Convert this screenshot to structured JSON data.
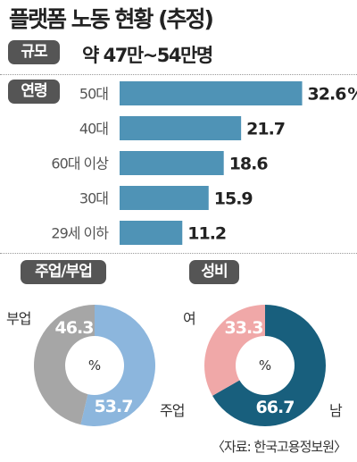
{
  "title": "플랫폼 노동 현황 (추정)",
  "scale": {
    "tag": "규모",
    "value": "약 47만~54만명"
  },
  "age": {
    "tag": "연령",
    "unit": "%",
    "color": "#4f93b6"
  },
  "job": {
    "tag": "주업/부업",
    "pct_symbol": "%",
    "labels": {
      "main": "주업",
      "side": "부업"
    },
    "colors": {
      "main": "#8cb6dd",
      "side": "#a6a6a6"
    }
  },
  "gender": {
    "tag": "성비",
    "pct_symbol": "%",
    "labels": {
      "male": "남",
      "female": "여"
    },
    "colors": {
      "male": "#185f7d",
      "female": "#f0a8a8"
    }
  },
  "source": "〈자료: 한국고용정보원〉",
  "chart_data": [
    {
      "type": "bar",
      "orientation": "horizontal",
      "categories": [
        "50대",
        "40대",
        "60대 이상",
        "30대",
        "29세 이하"
      ],
      "values": [
        32.6,
        21.7,
        18.6,
        15.9,
        11.2
      ],
      "value_labels": [
        "32.6",
        "21.7",
        "18.6",
        "15.9",
        "11.2"
      ],
      "title": "연령",
      "xlim": [
        0,
        35
      ],
      "grid": false,
      "legend": "none"
    },
    {
      "type": "pie",
      "title": "주업/부업",
      "donut": true,
      "categories": [
        "주업",
        "부업"
      ],
      "values": [
        53.7,
        46.3
      ],
      "value_labels": [
        "53.7",
        "46.3"
      ],
      "legend": "none"
    },
    {
      "type": "pie",
      "title": "성비",
      "donut": true,
      "categories": [
        "남",
        "여"
      ],
      "values": [
        66.7,
        33.3
      ],
      "value_labels": [
        "66.7",
        "33.3"
      ],
      "legend": "none"
    }
  ]
}
